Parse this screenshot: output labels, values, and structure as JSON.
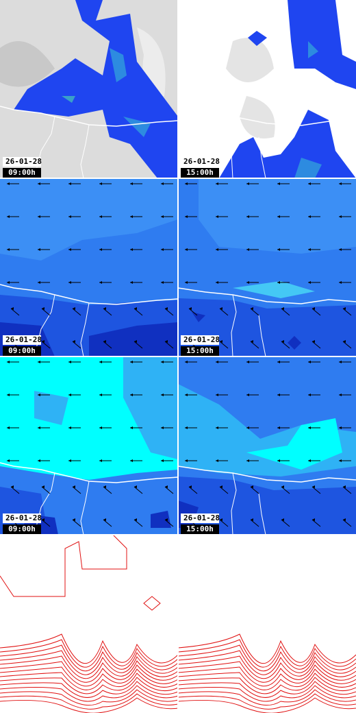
{
  "panels": [
    {
      "date": "26-01-28",
      "time": "09:00h"
    },
    {
      "date": "26-01-28",
      "time": "15:00h"
    },
    {
      "date": "26-01-28",
      "time": "09:00h"
    },
    {
      "date": "26-01-28",
      "time": "15:00h"
    },
    {
      "date": "26-01-28",
      "time": "09:00h"
    },
    {
      "date": "26-01-28",
      "time": "15:00h"
    }
  ]
}
